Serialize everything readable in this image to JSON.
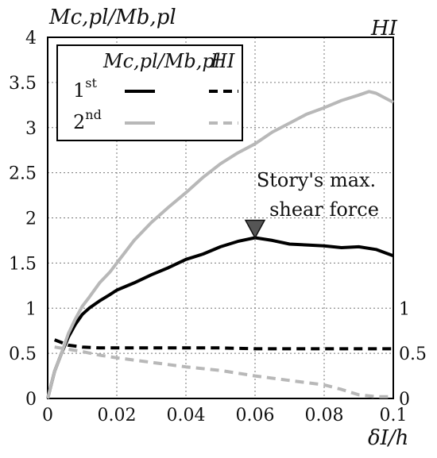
{
  "chart_data": {
    "type": "line",
    "y_axis_left": {
      "label": "Mc,pl/Mb,pl",
      "ylim": [
        0,
        4
      ],
      "ticks": [
        "0",
        "0.5",
        "1",
        "1.5",
        "2",
        "2.5",
        "3",
        "3.5",
        "4"
      ]
    },
    "y_axis_right": {
      "label": "HI",
      "ylim": [
        0,
        4
      ],
      "ticks": [
        "0",
        "0.5",
        "1"
      ]
    },
    "x_axis": {
      "label": "δI/h",
      "xlim": [
        0,
        0.1
      ],
      "ticks": [
        "0",
        "0.02",
        "0.04",
        "0.06",
        "0.08",
        "0.1"
      ]
    },
    "grid": true,
    "legend": {
      "placement": "top-left",
      "header_moment": "Mc,pl/Mb,pl",
      "header_h": "HI",
      "rows": [
        {
          "label": "1",
          "sup": "st"
        },
        {
          "label": "2",
          "sup": "nd"
        }
      ]
    },
    "annotation": {
      "line1": "Story's max.",
      "line2": "shear force",
      "x": 0.06,
      "y": 1.78
    },
    "series": [
      {
        "story": "1st",
        "quantity": "Mc,pl/Mb,pl",
        "color": "#000000",
        "dash": "solid",
        "x": [
          0,
          0.002,
          0.004,
          0.006,
          0.008,
          0.01,
          0.012,
          0.015,
          0.018,
          0.02,
          0.025,
          0.03,
          0.035,
          0.04,
          0.045,
          0.05,
          0.055,
          0.06,
          0.065,
          0.07,
          0.075,
          0.08,
          0.085,
          0.09,
          0.095,
          0.1
        ],
        "y": [
          0,
          0.3,
          0.5,
          0.68,
          0.82,
          0.93,
          1.0,
          1.08,
          1.15,
          1.2,
          1.28,
          1.37,
          1.45,
          1.54,
          1.6,
          1.68,
          1.74,
          1.78,
          1.75,
          1.71,
          1.7,
          1.69,
          1.67,
          1.68,
          1.65,
          1.58
        ]
      },
      {
        "story": "2nd",
        "quantity": "Mc,pl/Mb,pl",
        "color": "#b8b8b8",
        "dash": "solid",
        "x": [
          0,
          0.002,
          0.004,
          0.006,
          0.008,
          0.01,
          0.012,
          0.015,
          0.018,
          0.02,
          0.025,
          0.03,
          0.035,
          0.04,
          0.045,
          0.05,
          0.055,
          0.06,
          0.065,
          0.07,
          0.075,
          0.08,
          0.085,
          0.09,
          0.093,
          0.095,
          0.1
        ],
        "y": [
          0,
          0.3,
          0.5,
          0.72,
          0.88,
          1.02,
          1.12,
          1.28,
          1.4,
          1.5,
          1.75,
          1.95,
          2.12,
          2.28,
          2.45,
          2.6,
          2.72,
          2.82,
          2.95,
          3.05,
          3.15,
          3.22,
          3.3,
          3.36,
          3.4,
          3.38,
          3.28
        ]
      },
      {
        "story": "1st",
        "quantity": "HI",
        "color": "#000000",
        "dash": "dashed",
        "x": [
          0.002,
          0.004,
          0.006,
          0.01,
          0.015,
          0.02,
          0.03,
          0.04,
          0.05,
          0.06,
          0.07,
          0.08,
          0.09,
          0.1
        ],
        "y": [
          0.65,
          0.62,
          0.59,
          0.57,
          0.56,
          0.56,
          0.56,
          0.56,
          0.56,
          0.55,
          0.55,
          0.55,
          0.55,
          0.55
        ]
      },
      {
        "story": "2nd",
        "quantity": "HI",
        "color": "#b8b8b8",
        "dash": "dashed",
        "x": [
          0.002,
          0.005,
          0.01,
          0.015,
          0.02,
          0.03,
          0.04,
          0.05,
          0.06,
          0.07,
          0.08,
          0.085,
          0.09,
          0.095,
          0.1
        ],
        "y": [
          0.57,
          0.55,
          0.52,
          0.48,
          0.45,
          0.4,
          0.35,
          0.31,
          0.25,
          0.2,
          0.15,
          0.1,
          0.04,
          0.02,
          0.02
        ]
      }
    ]
  }
}
